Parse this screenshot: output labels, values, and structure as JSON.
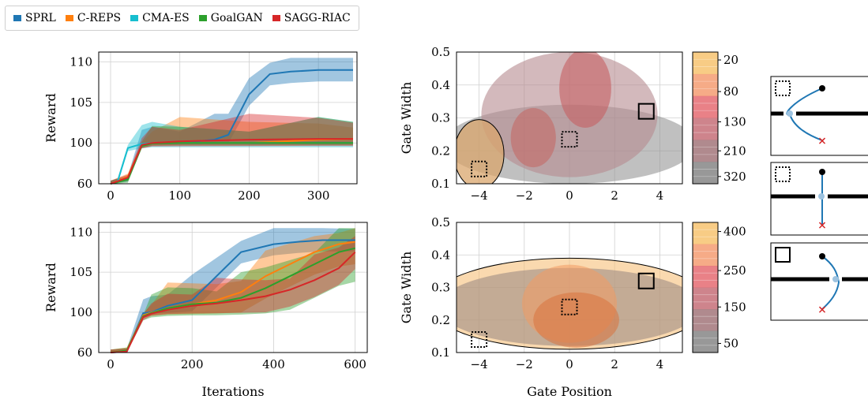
{
  "legend": [
    {
      "name": "SPRL",
      "color": "#1f77b4"
    },
    {
      "name": "C-REPS",
      "color": "#ff7f0e"
    },
    {
      "name": "CMA-ES",
      "color": "#17becf"
    },
    {
      "name": "GoalGAN",
      "color": "#2ca02c"
    },
    {
      "name": "SAGG-RIAC",
      "color": "#d62728"
    }
  ],
  "chart_data": [
    {
      "type": "line",
      "ylabel": "Reward",
      "xlabel": "",
      "x_ticks": [
        "0",
        "100",
        "200",
        "300"
      ],
      "y_ticks": [
        "60",
        "100",
        "105",
        "110"
      ],
      "series": [
        {
          "name": "SPRL",
          "color": "#1f77b4",
          "x": [
            0,
            25,
            45,
            60,
            100,
            150,
            170,
            200,
            230,
            260,
            300,
            350
          ],
          "y": [
            60,
            65,
            99,
            100,
            100,
            100.4,
            101,
            106,
            108.5,
            108.8,
            109,
            109
          ]
        },
        {
          "name": "C-REPS",
          "color": "#ff7f0e",
          "x": [
            0,
            25,
            45,
            60,
            100,
            200,
            300,
            350
          ],
          "y": [
            60,
            67,
            98,
            100,
            100,
            100,
            100.4,
            100.5
          ]
        },
        {
          "name": "CMA-ES",
          "color": "#17becf",
          "x": [
            0,
            10,
            25,
            45,
            60,
            100,
            200,
            300,
            350
          ],
          "y": [
            60,
            62,
            95,
            99,
            100,
            100,
            100,
            100,
            100
          ]
        },
        {
          "name": "GoalGAN",
          "color": "#2ca02c",
          "x": [
            0,
            25,
            45,
            60,
            100,
            200,
            300,
            350
          ],
          "y": [
            60,
            64,
            97,
            99.5,
            100,
            100,
            100,
            100
          ]
        },
        {
          "name": "SAGG-RIAC",
          "color": "#d62728",
          "x": [
            0,
            25,
            45,
            60,
            100,
            200,
            300,
            350
          ],
          "y": [
            60,
            66,
            98,
            100,
            100.2,
            100.4,
            100.5,
            100.5
          ]
        }
      ]
    },
    {
      "type": "line",
      "ylabel": "Reward",
      "xlabel": "Iterations",
      "x_ticks": [
        "0",
        "200",
        "400",
        "600"
      ],
      "y_ticks": [
        "60",
        "100",
        "105",
        "110"
      ],
      "series": [
        {
          "name": "SPRL",
          "color": "#1f77b4",
          "x": [
            0,
            40,
            80,
            100,
            140,
            200,
            240,
            280,
            320,
            400,
            460,
            520,
            600
          ],
          "y": [
            60,
            61,
            99,
            100,
            100.8,
            101.5,
            103.5,
            105.5,
            107.5,
            108.5,
            108.8,
            109,
            109
          ]
        },
        {
          "name": "C-REPS",
          "color": "#ff7f0e",
          "x": [
            0,
            40,
            80,
            100,
            140,
            200,
            260,
            320,
            380,
            440,
            500,
            560,
            600
          ],
          "y": [
            60,
            62,
            97,
            99.5,
            100.5,
            101,
            101.5,
            102.5,
            104.5,
            106,
            107.5,
            108.5,
            108.8
          ]
        },
        {
          "name": "GoalGAN",
          "color": "#2ca02c",
          "x": [
            0,
            40,
            80,
            100,
            140,
            200,
            260,
            320,
            380,
            440,
            500,
            560,
            600
          ],
          "y": [
            60,
            62,
            96,
            99,
            100.5,
            101,
            101.2,
            101.8,
            103,
            104.5,
            106,
            107.5,
            108
          ]
        },
        {
          "name": "SAGG-RIAC",
          "color": "#d62728",
          "x": [
            0,
            40,
            80,
            100,
            140,
            200,
            260,
            320,
            380,
            440,
            500,
            560,
            600
          ],
          "y": [
            60,
            61,
            95,
            98.5,
            100.3,
            100.8,
            101.1,
            101.5,
            102,
            102.8,
            104,
            105.5,
            107.5
          ]
        }
      ]
    },
    {
      "type": "contour",
      "xlabel": "",
      "ylabel": "Gate Width",
      "xlim": [
        -5,
        5
      ],
      "ylim": [
        0.1,
        0.5
      ],
      "x_ticks": [
        "−4",
        "−2",
        "0",
        "2",
        "4"
      ],
      "y_ticks": [
        "0.1",
        "0.2",
        "0.3",
        "0.4",
        "0.5"
      ],
      "colorbar_ticks": [
        "20",
        "80",
        "130",
        "210",
        "320"
      ],
      "distributions": [
        {
          "cx": 0,
          "cy": 0.22,
          "rx": 5.6,
          "ry": 0.12,
          "color": "#8c8c8c",
          "opacity": 0.55
        },
        {
          "cx": 0,
          "cy": 0.31,
          "rx": 3.9,
          "ry": 0.19,
          "color": "#b58a8f",
          "opacity": 0.6
        },
        {
          "cx": -1.6,
          "cy": 0.24,
          "rx": 1.0,
          "ry": 0.09,
          "color": "#c46561",
          "opacity": 0.55
        },
        {
          "cx": 0.7,
          "cy": 0.39,
          "rx": 1.15,
          "ry": 0.12,
          "color": "#c75f63",
          "opacity": 0.6
        },
        {
          "cx": -4,
          "cy": 0.19,
          "rx": 1.1,
          "ry": 0.105,
          "color": "#d9a56c",
          "opacity": 0.75
        }
      ],
      "markers": [
        {
          "x": 3.4,
          "y": 0.32,
          "style": "solid"
        },
        {
          "x": 0,
          "y": 0.235,
          "style": "dotted"
        },
        {
          "x": -4,
          "y": 0.145,
          "style": "dotted"
        }
      ]
    },
    {
      "type": "contour",
      "xlabel": "Gate Position",
      "ylabel": "Gate Width",
      "xlim": [
        -5,
        5
      ],
      "ylim": [
        0.1,
        0.5
      ],
      "x_ticks": [
        "−4",
        "−2",
        "0",
        "2",
        "4"
      ],
      "y_ticks": [
        "0.1",
        "0.2",
        "0.3",
        "0.4",
        "0.5"
      ],
      "colorbar_ticks": [
        "50",
        "150",
        "250",
        "400"
      ],
      "distributions": [
        {
          "cx": 0,
          "cy": 0.25,
          "rx": 6.2,
          "ry": 0.14,
          "color": "#f6c07a",
          "opacity": 0.6
        },
        {
          "cx": 0,
          "cy": 0.24,
          "rx": 5.8,
          "ry": 0.12,
          "color": "#9f8c84",
          "opacity": 0.6
        },
        {
          "cx": 0,
          "cy": 0.25,
          "rx": 2.1,
          "ry": 0.12,
          "color": "#f39a63",
          "opacity": 0.55
        },
        {
          "cx": 0.3,
          "cy": 0.2,
          "rx": 1.9,
          "ry": 0.085,
          "color": "#d8733e",
          "opacity": 0.55
        }
      ],
      "markers": [
        {
          "x": 3.4,
          "y": 0.32,
          "style": "solid"
        },
        {
          "x": 0,
          "y": 0.24,
          "style": "dotted"
        },
        {
          "x": -4,
          "y": 0.14,
          "style": "dotted"
        }
      ]
    }
  ]
}
